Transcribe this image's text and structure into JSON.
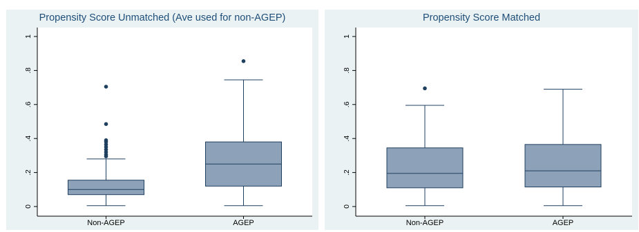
{
  "chart_data": [
    {
      "type": "box",
      "title": "Propensity Score Unmatched (Ave used for non-AGEP)",
      "xlabel": "",
      "ylabel": "",
      "ylim": [
        0,
        1
      ],
      "yticks": [
        0,
        0.2,
        0.4,
        0.6,
        0.8,
        1
      ],
      "ytick_labels": [
        "0",
        ".2",
        ".4",
        ".6",
        ".8",
        "1"
      ],
      "grid": false,
      "categories": [
        "Non-AGEP",
        "AGEP"
      ],
      "boxes": [
        {
          "category": "Non-AGEP",
          "whisker_low": 0.005,
          "q1": 0.07,
          "median": 0.1,
          "q3": 0.155,
          "whisker_high": 0.28,
          "outliers": [
            0.295,
            0.305,
            0.32,
            0.335,
            0.35,
            0.365,
            0.38,
            0.39,
            0.485,
            0.705
          ]
        },
        {
          "category": "AGEP",
          "whisker_low": 0.005,
          "q1": 0.12,
          "median": 0.25,
          "q3": 0.38,
          "whisker_high": 0.745,
          "outliers": [
            0.855
          ]
        }
      ],
      "colors": {
        "box_fill": "#8da1b8",
        "box_stroke": "#1f3f5f",
        "marker": "#1f3f5f",
        "title": "#1f4e79"
      }
    },
    {
      "type": "box",
      "title": "Propensity Score Matched",
      "xlabel": "",
      "ylabel": "",
      "ylim": [
        0,
        1
      ],
      "yticks": [
        0,
        0.2,
        0.4,
        0.6,
        0.8,
        1
      ],
      "ytick_labels": [
        "0",
        ".2",
        ".4",
        ".6",
        ".8",
        "1"
      ],
      "grid": false,
      "categories": [
        "Non-AGEP",
        "AGEP"
      ],
      "boxes": [
        {
          "category": "Non-AGEP",
          "whisker_low": 0.005,
          "q1": 0.11,
          "median": 0.195,
          "q3": 0.345,
          "whisker_high": 0.595,
          "outliers": [
            0.695
          ]
        },
        {
          "category": "AGEP",
          "whisker_low": 0.005,
          "q1": 0.115,
          "median": 0.21,
          "q3": 0.365,
          "whisker_high": 0.69,
          "outliers": []
        }
      ],
      "colors": {
        "box_fill": "#8da1b8",
        "box_stroke": "#1f3f5f",
        "marker": "#1f3f5f",
        "title": "#1f4e79"
      }
    }
  ]
}
